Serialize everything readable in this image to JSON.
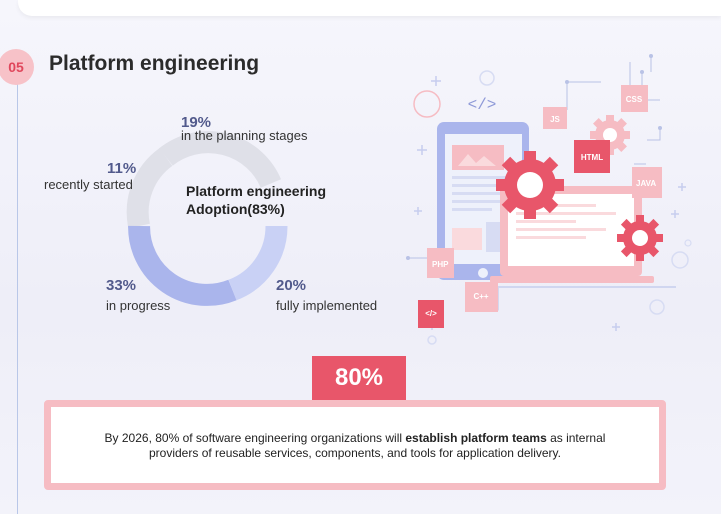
{
  "section": {
    "number": "05",
    "title": "Platform engineering"
  },
  "adoption": {
    "center_title_line1": "Platform engineering",
    "center_title_line2": "Adoption(83%)",
    "segments": [
      {
        "value_label": "19%",
        "description": "in the planning stages",
        "color": "#dfe0e8"
      },
      {
        "value_label": "11%",
        "description": "recently started",
        "color": "#dfe0e8"
      },
      {
        "value_label": "33%",
        "description": "in progress",
        "color": "#aab5ec"
      },
      {
        "value_label": "20%",
        "description": "fully implemented",
        "color": "#c9d1f5"
      }
    ]
  },
  "illustration": {
    "code_symbol": "</>",
    "tags": [
      "JS",
      "CSS",
      "HTML",
      "JAVA",
      "PHP",
      "C++",
      "</>"
    ]
  },
  "highlight": {
    "stat": "80%",
    "text_before": "By 2026, 80% of software engineering organizations will ",
    "text_bold": "establish platform teams",
    "text_after": " as internal providers of reusable services, components, and tools for application delivery."
  },
  "colors": {
    "accent": "#e8566a",
    "accent_light": "#f6bcc3",
    "heading_number": "#525a8c"
  }
}
